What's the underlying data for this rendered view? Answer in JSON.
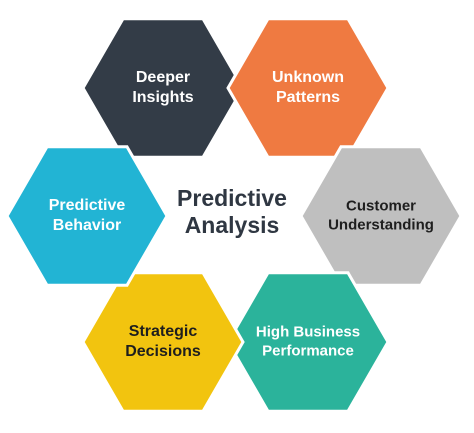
{
  "center": {
    "label": "Predictive\nAnalysis"
  },
  "hexagons": [
    {
      "id": "deeper-insights",
      "label": "Deeper\nInsights",
      "fill": "#333c47",
      "text_color": "#ffffff"
    },
    {
      "id": "unknown-patterns",
      "label": "Unknown\nPatterns",
      "fill": "#ef7a41",
      "text_color": "#ffffff"
    },
    {
      "id": "customer-understanding",
      "label": "Customer\nUnderstanding",
      "fill": "#bfbfbf",
      "text_color": "#1e1e1e"
    },
    {
      "id": "high-business-performance",
      "label": "High Business\nPerformance",
      "fill": "#2bb39b",
      "text_color": "#ffffff"
    },
    {
      "id": "strategic-decisions",
      "label": "Strategic\nDecisions",
      "fill": "#f2c40f",
      "text_color": "#1e1e1e"
    },
    {
      "id": "predictive-behavior",
      "label": "Predictive\nBehavior",
      "fill": "#22b4d4",
      "text_color": "#ffffff"
    }
  ]
}
